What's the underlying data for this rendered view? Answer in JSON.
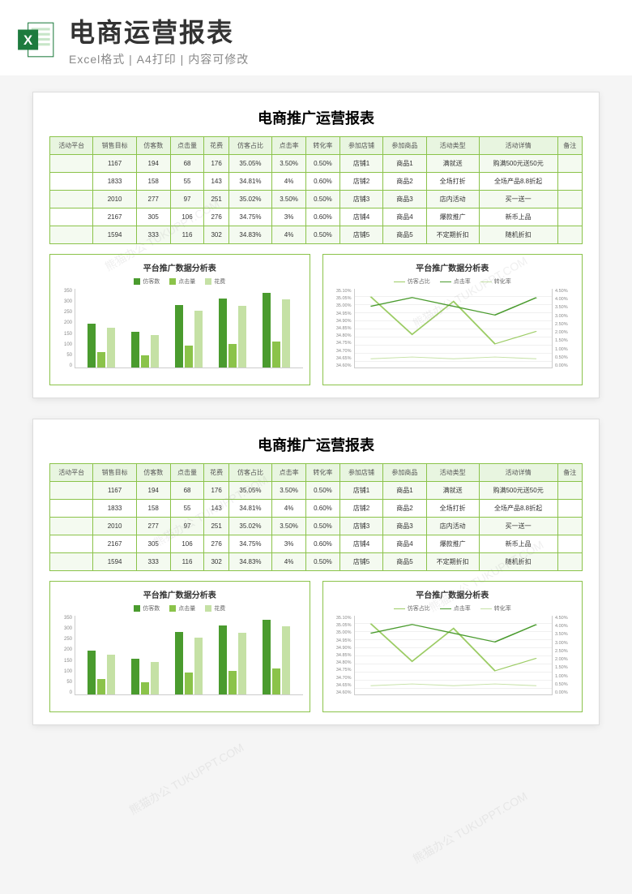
{
  "header": {
    "title": "电商运营报表",
    "subtitle": "Excel格式 | A4打印 | 内容可修改"
  },
  "report_title": "电商推广运营报表",
  "table": {
    "columns": [
      "活动平台",
      "销售目标",
      "仿客数",
      "点击量",
      "花费",
      "仿客占比",
      "点击率",
      "转化率",
      "参加店铺",
      "参加商品",
      "活动类型",
      "活动详情",
      "备注"
    ],
    "rows": [
      [
        "",
        "1167",
        "194",
        "68",
        "176",
        "35.05%",
        "3.50%",
        "0.50%",
        "店铺1",
        "商品1",
        "满就送",
        "购满500元送50元",
        ""
      ],
      [
        "",
        "1833",
        "158",
        "55",
        "143",
        "34.81%",
        "4%",
        "0.60%",
        "店铺2",
        "商品2",
        "全场打折",
        "全场产品8.8折起",
        ""
      ],
      [
        "",
        "2010",
        "277",
        "97",
        "251",
        "35.02%",
        "3.50%",
        "0.50%",
        "店铺3",
        "商品3",
        "店内活动",
        "买一送一",
        ""
      ],
      [
        "",
        "2167",
        "305",
        "106",
        "276",
        "34.75%",
        "3%",
        "0.60%",
        "店铺4",
        "商品4",
        "爆款推广",
        "新币上品",
        ""
      ],
      [
        "",
        "1594",
        "333",
        "116",
        "302",
        "34.83%",
        "4%",
        "0.50%",
        "店铺5",
        "商品5",
        "不定期折扣",
        "随机折扣",
        ""
      ]
    ]
  },
  "bar_chart": {
    "title": "平台推广数据分析表",
    "legend": [
      "仿客数",
      "点击量",
      "花费"
    ],
    "colors": [
      "#4a9b2e",
      "#8bc34a",
      "#c5e1a5"
    ],
    "y_ticks": [
      "350",
      "300",
      "250",
      "200",
      "150",
      "100",
      "50",
      "0"
    ],
    "y_max": 350,
    "groups": [
      [
        194,
        68,
        176
      ],
      [
        158,
        55,
        143
      ],
      [
        277,
        97,
        251
      ],
      [
        305,
        106,
        276
      ],
      [
        333,
        116,
        302
      ]
    ]
  },
  "line_chart": {
    "title": "平台推广数据分析表",
    "legend": [
      "仿客占比",
      "点击率",
      "转化率"
    ],
    "colors": [
      "#9ccc65",
      "#4a9b2e",
      "#c5e1a5"
    ],
    "left_ticks": [
      "35.10%",
      "35.05%",
      "35.00%",
      "34.95%",
      "34.90%",
      "34.85%",
      "34.80%",
      "34.75%",
      "34.70%",
      "34.65%",
      "34.60%"
    ],
    "right_ticks": [
      "4.50%",
      "4.00%",
      "3.50%",
      "3.00%",
      "2.50%",
      "2.00%",
      "1.50%",
      "1.00%",
      "0.50%",
      "0.00%"
    ],
    "left_min": 34.6,
    "left_max": 35.1,
    "right_min": 0,
    "right_max": 4.5,
    "series_left": [
      35.05,
      34.81,
      35.02,
      34.75,
      34.83
    ],
    "series_right_1": [
      3.5,
      4.0,
      3.5,
      3.0,
      4.0
    ],
    "series_right_2": [
      0.5,
      0.6,
      0.5,
      0.6,
      0.5
    ]
  },
  "watermark_text": "熊猫办公 TUKUPPT.COM"
}
